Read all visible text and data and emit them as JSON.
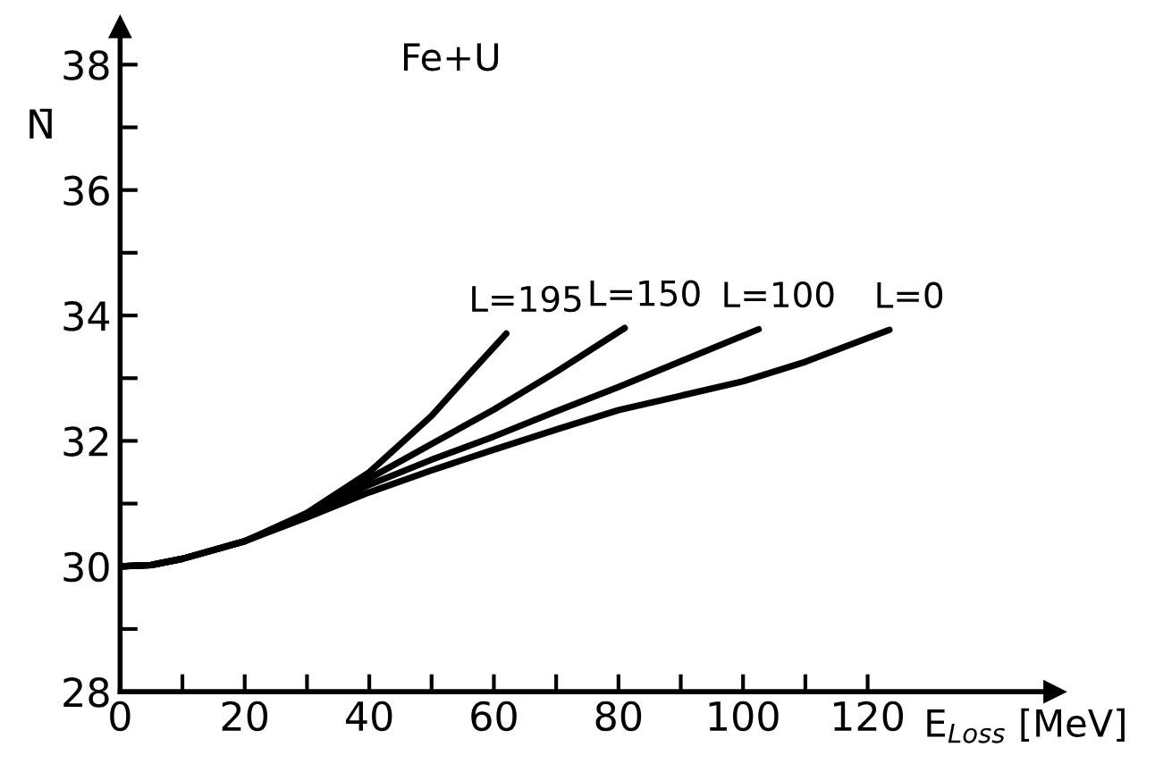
{
  "chart_data": {
    "type": "line",
    "title": "Fe+U",
    "xlabel": "E$_{Loss}$ [MeV]",
    "ylabel": "N̄",
    "xlim": [
      0,
      150
    ],
    "ylim": [
      28,
      38.6
    ],
    "xticks": [
      0,
      {
        "value": 10,
        "label": null
      },
      20,
      {
        "value": 30,
        "label": null
      },
      40,
      {
        "value": 50,
        "label": null
      },
      60,
      {
        "value": 70,
        "label": null
      },
      80,
      {
        "value": 90,
        "label": null
      },
      100,
      {
        "value": 110,
        "label": null
      },
      120
    ],
    "yticks": [
      28,
      {
        "value": 29,
        "label": null
      },
      30,
      {
        "value": 31,
        "label": null
      },
      32,
      {
        "value": 33,
        "label": null
      },
      34,
      {
        "value": 35,
        "label": null
      },
      36,
      {
        "value": 37,
        "label": null
      },
      38
    ],
    "series": [
      {
        "name": "L=195",
        "color": "#000000",
        "x": [
          0,
          5,
          10,
          20,
          30,
          40,
          50,
          56,
          62
        ],
        "values": [
          30,
          30.02,
          30.12,
          30.4,
          30.85,
          31.5,
          32.4,
          33.06,
          33.71
        ]
      },
      {
        "name": "L=150",
        "color": "#000000",
        "x": [
          0,
          5,
          10,
          20,
          30,
          40,
          50,
          60,
          70,
          81
        ],
        "values": [
          30,
          30.02,
          30.12,
          30.4,
          30.82,
          31.4,
          31.95,
          32.5,
          33.1,
          33.8
        ]
      },
      {
        "name": "L=100",
        "color": "#000000",
        "x": [
          0,
          5,
          10,
          20,
          30,
          40,
          50,
          60,
          70,
          80,
          90,
          102.5
        ],
        "values": [
          30,
          30.02,
          30.12,
          30.4,
          30.8,
          31.3,
          31.7,
          32.07,
          32.47,
          32.86,
          33.27,
          33.78
        ]
      },
      {
        "name": "L=0",
        "color": "#000000",
        "x": [
          0,
          5,
          10,
          20,
          30,
          40,
          50,
          60,
          70,
          80,
          90,
          100,
          110,
          123.5
        ],
        "values": [
          30,
          30.02,
          30.12,
          30.4,
          30.78,
          31.18,
          31.53,
          31.86,
          32.18,
          32.49,
          32.72,
          32.95,
          33.26,
          33.77
        ]
      }
    ],
    "grid": false,
    "legend": false,
    "marker": "none",
    "line_style": "solid"
  }
}
